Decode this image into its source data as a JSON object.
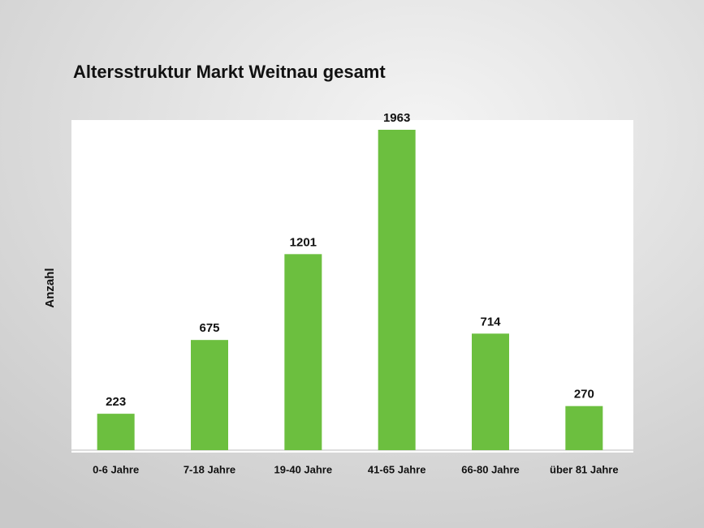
{
  "chart_data": {
    "type": "bar",
    "title": "Altersstruktur Markt Weitnau gesamt",
    "y_label": "Anzahl",
    "categories": [
      "0-6 Jahre",
      "7-18 Jahre",
      "19-40 Jahre",
      "41-65 Jahre",
      "66-80 Jahre",
      "über 81 Jahre"
    ],
    "values": [
      223,
      675,
      1201,
      1963,
      714,
      270
    ],
    "color": "#6cbf3f"
  }
}
